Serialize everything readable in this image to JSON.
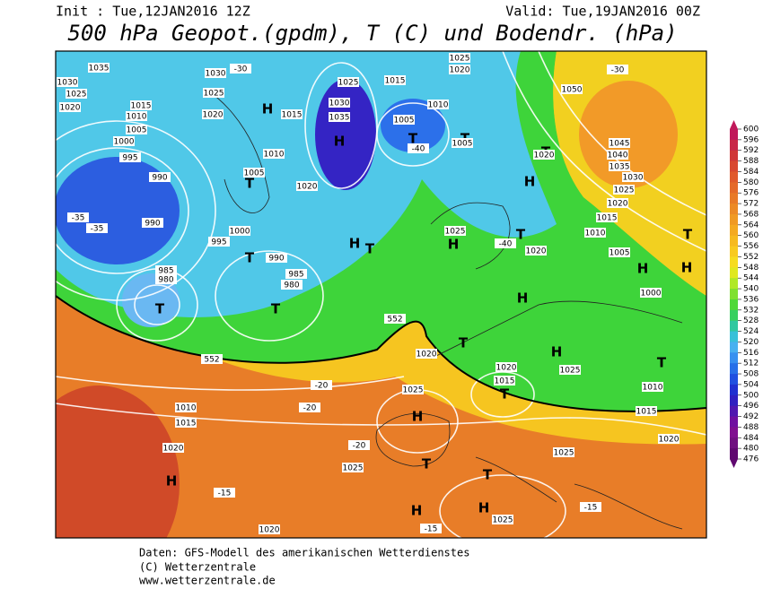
{
  "header": {
    "init": "Init : Tue,12JAN2016 12Z",
    "valid": "Valid: Tue,19JAN2016 00Z",
    "title": "500 hPa Geopot.(gpdm), T (C) und Bodendr. (hPa)"
  },
  "footer": [
    "Daten: GFS-Modell des amerikanischen Wetterdienstes",
    "(C) Wetterzentrale",
    "www.wetterzentrale.de"
  ],
  "colorbar": {
    "ticks": [
      600,
      596,
      592,
      588,
      584,
      580,
      576,
      572,
      568,
      564,
      560,
      556,
      552,
      548,
      544,
      540,
      536,
      532,
      528,
      524,
      520,
      516,
      512,
      508,
      504,
      500,
      496,
      492,
      488,
      484,
      480,
      476
    ],
    "colors": [
      "#c0185a",
      "#c82848",
      "#d03838",
      "#d84830",
      "#e05a2c",
      "#e46a2a",
      "#e87a28",
      "#ec8a26",
      "#f09a24",
      "#f4aa22",
      "#f6ba20",
      "#f8ca20",
      "#f6dc20",
      "#e0e820",
      "#b0e828",
      "#80e030",
      "#50d838",
      "#38d060",
      "#30c8a0",
      "#38c0d8",
      "#48b0f0",
      "#3890f0",
      "#2870e8",
      "#2050e0",
      "#2030d0",
      "#3020c0",
      "#5018b0",
      "#7010a0",
      "#801090",
      "#701080",
      "#600870"
    ]
  },
  "map_labels": [
    "1035",
    "1030",
    "1025",
    "1020",
    "1015",
    "1010",
    "1005",
    "1000",
    "995",
    "990",
    "1030",
    "1025",
    "1020",
    "1015",
    "H",
    "1025",
    "1030",
    "1035",
    "H",
    "1015",
    "1005",
    "T",
    "1010",
    "T",
    "1005",
    "1025",
    "1020",
    "1050",
    "-30",
    "1045",
    "1040",
    "1035",
    "1030",
    "1025",
    "1020",
    "1015",
    "1010",
    "1005",
    "1000",
    "H",
    "T",
    "1020",
    "T",
    "1005",
    "1010",
    "1020",
    "1000",
    "T",
    "995",
    "990",
    "985",
    "980",
    "T",
    "990",
    "985",
    "980",
    "T",
    "H",
    "T",
    "1025",
    "H",
    "1020",
    "T",
    "H",
    "T",
    "H",
    "1025",
    "1020",
    "1015",
    "T",
    "H",
    "1025",
    "1020",
    "1010",
    "1015",
    "1020",
    "H",
    "1025",
    "T",
    "T",
    "H",
    "H",
    "1025",
    "1020",
    "-15",
    "-15",
    "-15",
    "1025",
    "1020",
    "-20",
    "-20",
    "-20",
    "552",
    "552",
    "1015",
    "1010",
    "T",
    "H",
    "H",
    "T",
    "-40",
    "-40",
    "-30",
    "-35",
    "-35"
  ]
}
